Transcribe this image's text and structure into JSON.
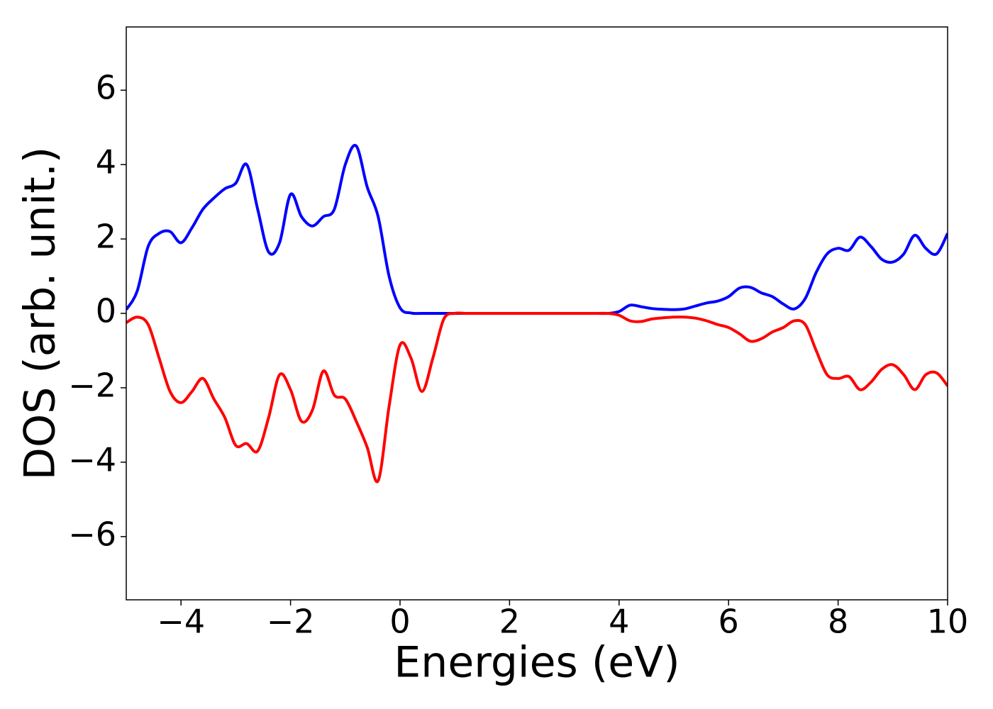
{
  "chart_data": {
    "type": "line",
    "xlabel": "Energies (eV)",
    "ylabel": "DOS (arb. unit.)",
    "x": [
      -5,
      -4.8,
      -4.6,
      -4.4,
      -4.2,
      -4,
      -3.8,
      -3.6,
      -3.4,
      -3.2,
      -3,
      -2.8,
      -2.6,
      -2.4,
      -2.2,
      -2,
      -1.8,
      -1.6,
      -1.4,
      -1.2,
      -1,
      -0.8,
      -0.6,
      -0.4,
      -0.2,
      0,
      0.2,
      0.4,
      0.6,
      0.8,
      1,
      1.2,
      1.4,
      1.6,
      1.8,
      2,
      2.2,
      2.4,
      2.6,
      2.8,
      3,
      3.2,
      3.4,
      3.6,
      3.8,
      4,
      4.2,
      4.4,
      4.6,
      4.8,
      5,
      5.2,
      5.4,
      5.6,
      5.8,
      6,
      6.2,
      6.4,
      6.6,
      6.8,
      7,
      7.2,
      7.4,
      7.6,
      7.8,
      8,
      8.2,
      8.4,
      8.6,
      8.8,
      9,
      9.2,
      9.4,
      9.6,
      9.8,
      10
    ],
    "series": [
      {
        "color": "#0000ff",
        "values": [
          0.1,
          0.6,
          1.8,
          2.15,
          2.2,
          1.9,
          2.3,
          2.8,
          3.1,
          3.35,
          3.5,
          4.0,
          2.8,
          1.65,
          1.9,
          3.2,
          2.6,
          2.35,
          2.6,
          2.8,
          4.0,
          4.5,
          3.4,
          2.6,
          1.0,
          0.15,
          0.01,
          0,
          0,
          0,
          0,
          0,
          0,
          0,
          0,
          0,
          0,
          0,
          0,
          0,
          0,
          0,
          0,
          0,
          0,
          0.05,
          0.22,
          0.18,
          0.13,
          0.11,
          0.1,
          0.12,
          0.2,
          0.28,
          0.33,
          0.45,
          0.68,
          0.7,
          0.55,
          0.45,
          0.25,
          0.12,
          0.4,
          1.1,
          1.6,
          1.75,
          1.7,
          2.05,
          1.8,
          1.45,
          1.38,
          1.6,
          2.1,
          1.75,
          1.6,
          2.15
        ]
      },
      {
        "color": "#ff0000",
        "values": [
          -0.25,
          -0.1,
          -0.3,
          -1.2,
          -2.1,
          -2.4,
          -2.1,
          -1.75,
          -2.3,
          -2.8,
          -3.55,
          -3.5,
          -3.7,
          -2.8,
          -1.65,
          -2.05,
          -2.9,
          -2.6,
          -1.55,
          -2.2,
          -2.3,
          -2.9,
          -3.6,
          -4.5,
          -2.5,
          -0.85,
          -1.2,
          -2.1,
          -1.2,
          -0.15,
          0,
          0,
          0,
          0,
          0,
          0,
          0,
          0,
          0,
          0,
          0,
          0,
          0,
          0,
          0,
          -0.05,
          -0.2,
          -0.22,
          -0.15,
          -0.12,
          -0.1,
          -0.1,
          -0.13,
          -0.2,
          -0.3,
          -0.38,
          -0.55,
          -0.75,
          -0.68,
          -0.5,
          -0.38,
          -0.2,
          -0.3,
          -1.0,
          -1.65,
          -1.75,
          -1.7,
          -2.05,
          -1.85,
          -1.5,
          -1.38,
          -1.65,
          -2.05,
          -1.65,
          -1.6,
          -1.95
        ]
      }
    ],
    "xlim": [
      -5,
      10
    ],
    "xticks": [
      {
        "value": -4,
        "label": "−4"
      },
      {
        "value": -2,
        "label": "−2"
      },
      0,
      2,
      4,
      6,
      8,
      10
    ],
    "ylim": [
      -7.7,
      7.7
    ],
    "yticks": [
      {
        "value": -6,
        "label": "−6"
      },
      {
        "value": -4,
        "label": "−4"
      },
      {
        "value": -2,
        "label": "−2"
      },
      0,
      2,
      4,
      6
    ],
    "grid": false
  }
}
